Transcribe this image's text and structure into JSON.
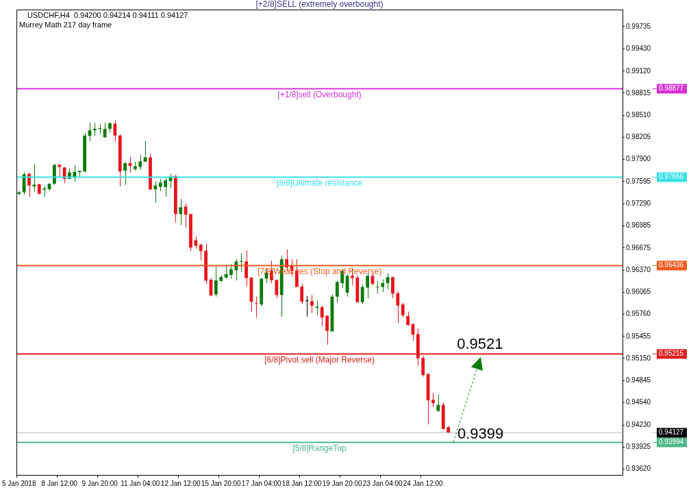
{
  "chart_data": {
    "type": "candlestick",
    "title": "USDCHF,H4  0.94200 0.94214 0.94111 0.94127",
    "subtitle": "Murrey Math 217 day frame",
    "categories": [
      "5 Jan 2018",
      null,
      null,
      null,
      null,
      null,
      null,
      null,
      "8 Jan 12:00",
      null,
      null,
      null,
      null,
      null,
      null,
      null,
      "9 Jan 20:00",
      null,
      null,
      null,
      null,
      null,
      null,
      null,
      "11 Jan 04:00",
      null,
      null,
      null,
      null,
      null,
      null,
      null,
      "12 Jan 12:00",
      null,
      null,
      null,
      null,
      null,
      null,
      null,
      "15 Jan 20:00",
      null,
      null,
      null,
      null,
      null,
      null,
      null,
      "17 Jan 04:00",
      null,
      null,
      null,
      null,
      null,
      null,
      null,
      "18 Jan 12:00",
      null,
      null,
      null,
      null,
      null,
      null,
      null,
      "19 Jan 20:00",
      null,
      null,
      null,
      null,
      null,
      null,
      null,
      "23 Jan 04:00",
      null,
      null,
      null,
      null,
      null,
      null,
      null,
      "24 Jan 12:00",
      null,
      null,
      null,
      null,
      null,
      null,
      null,
      null,
      null,
      null,
      null,
      null,
      null,
      null,
      null,
      null,
      null,
      null,
      null,
      null,
      null,
      null,
      null,
      null,
      null,
      null,
      null,
      null,
      null,
      null,
      null,
      null,
      null,
      null,
      null,
      null,
      null,
      null,
      null
    ],
    "ohlc": [
      [
        0.97424,
        0.97464,
        0.97403,
        0.97446
      ],
      [
        0.97446,
        0.97719,
        0.97415,
        0.97694
      ],
      [
        0.97703,
        0.97712,
        0.97384,
        0.97539
      ],
      [
        0.97527,
        0.97836,
        0.97455,
        0.97551
      ],
      [
        0.97557,
        0.97564,
        0.97418,
        0.97424
      ],
      [
        0.97483,
        0.97533,
        0.97384,
        0.97499
      ],
      [
        0.97489,
        0.9757,
        0.97464,
        0.97564
      ],
      [
        0.97564,
        0.97827,
        0.97548,
        0.97827
      ],
      [
        0.97827,
        0.9783,
        0.97657,
        0.97796
      ],
      [
        0.9779,
        0.9779,
        0.9757,
        0.97632
      ],
      [
        0.97632,
        0.97774,
        0.97626,
        0.97719
      ],
      [
        0.9765,
        0.97818,
        0.97588,
        0.97727
      ],
      [
        0.97725,
        0.97743,
        0.9765,
        0.97743
      ],
      [
        0.97734,
        0.98261,
        0.97719,
        0.9823
      ],
      [
        0.98224,
        0.98406,
        0.98152,
        0.98301
      ],
      [
        0.98301,
        0.98406,
        0.9822,
        0.98323
      ],
      [
        0.9832,
        0.98385,
        0.98251,
        0.98332
      ],
      [
        0.98205,
        0.98406,
        0.98199,
        0.98323
      ],
      [
        0.98323,
        0.98406,
        0.9827,
        0.984
      ],
      [
        0.98394,
        0.98437,
        0.98146,
        0.9823
      ],
      [
        0.9823,
        0.98245,
        0.97526,
        0.97734
      ],
      [
        0.97743,
        0.97858,
        0.97548,
        0.97849
      ],
      [
        0.97849,
        0.97935,
        0.97712,
        0.97811
      ],
      [
        0.97765,
        0.97867,
        0.97743,
        0.97805
      ],
      [
        0.97796,
        0.97966,
        0.97756,
        0.97873
      ],
      [
        0.97867,
        0.98152,
        0.97867,
        0.97929
      ],
      [
        0.97929,
        0.97982,
        0.97477,
        0.97486
      ],
      [
        0.97486,
        0.97595,
        0.973,
        0.97539
      ],
      [
        0.9752,
        0.97632,
        0.97464,
        0.97579
      ],
      [
        0.97517,
        0.97641,
        0.97384,
        0.9761
      ],
      [
        0.97601,
        0.97703,
        0.97502,
        0.97663
      ],
      [
        0.97672,
        0.97681,
        0.97031,
        0.97145
      ],
      [
        0.97145,
        0.97353,
        0.96991,
        0.97238
      ],
      [
        0.97248,
        0.97291,
        0.9696,
        0.97136
      ],
      [
        0.97145,
        0.97145,
        0.96634,
        0.96681
      ],
      [
        0.96783,
        0.96836,
        0.96665,
        0.96706
      ],
      [
        0.96721,
        0.96733,
        0.96504,
        0.96634
      ],
      [
        0.9664,
        0.96733,
        0.96176,
        0.96225
      ],
      [
        0.96238,
        0.96256,
        0.96009,
        0.96021
      ],
      [
        0.96035,
        0.96417,
        0.96004,
        0.96227
      ],
      [
        0.96221,
        0.96298,
        0.96205,
        0.96274
      ],
      [
        0.96267,
        0.96447,
        0.96252,
        0.96314
      ],
      [
        0.96305,
        0.96453,
        0.96252,
        0.96382
      ],
      [
        0.96366,
        0.96521,
        0.96227,
        0.9649
      ],
      [
        0.96484,
        0.96602,
        0.96345,
        0.96493
      ],
      [
        0.9649,
        0.96645,
        0.9615,
        0.96261
      ],
      [
        0.96267,
        0.96267,
        0.95796,
        0.95933
      ],
      [
        0.95905,
        0.96004,
        0.95716,
        0.95902
      ],
      [
        0.95896,
        0.96261,
        0.95871,
        0.96252
      ],
      [
        0.96252,
        0.96391,
        0.9619,
        0.96336
      ],
      [
        0.9636,
        0.965,
        0.9619,
        0.9623
      ],
      [
        0.96236,
        0.96236,
        0.95982,
        0.96026
      ],
      [
        0.96026,
        0.96571,
        0.95725,
        0.96521
      ],
      [
        0.96521,
        0.96655,
        0.9636,
        0.96407
      ],
      [
        0.96428,
        0.96521,
        0.96283,
        0.9636
      ],
      [
        0.96366,
        0.96521,
        0.96137,
        0.96137
      ],
      [
        0.96143,
        0.9618,
        0.95902,
        0.95933
      ],
      [
        0.95942,
        0.96013,
        0.95725,
        0.95942
      ],
      [
        0.95942,
        0.96026,
        0.95778,
        0.9588
      ],
      [
        0.95849,
        0.95951,
        0.95747,
        0.95865
      ],
      [
        0.95859,
        0.9588,
        0.95601,
        0.95716
      ],
      [
        0.95741,
        0.95741,
        0.95338,
        0.9553
      ],
      [
        0.95524,
        0.96035,
        0.95518,
        0.96004
      ],
      [
        0.96004,
        0.96221,
        0.9592,
        0.96205
      ],
      [
        0.9619,
        0.96391,
        0.96119,
        0.9636
      ],
      [
        0.9606,
        0.96314,
        0.96004,
        0.96292
      ],
      [
        0.96292,
        0.96391,
        0.96159,
        0.96261
      ],
      [
        0.96267,
        0.96298,
        0.9592,
        0.95927
      ],
      [
        0.95927,
        0.96174,
        0.95902,
        0.96137
      ],
      [
        0.96128,
        0.96329,
        0.95982,
        0.96292
      ],
      [
        0.96292,
        0.96314,
        0.96159,
        0.9618
      ],
      [
        0.96131,
        0.96221,
        0.96044,
        0.96137
      ],
      [
        0.96137,
        0.96243,
        0.96066,
        0.9619
      ],
      [
        0.9619,
        0.96329,
        0.96106,
        0.96274
      ],
      [
        0.96274,
        0.96274,
        0.95982,
        0.96044
      ],
      [
        0.9605,
        0.96075,
        0.95642,
        0.9588
      ],
      [
        0.95896,
        0.9592,
        0.95716,
        0.95747
      ],
      [
        0.95735,
        0.95797,
        0.95601,
        0.95611
      ],
      [
        0.95623,
        0.95642,
        0.95394,
        0.95478
      ],
      [
        0.95487,
        0.95561,
        0.95053,
        0.95152
      ],
      [
        0.95158,
        0.95183,
        0.94898,
        0.9492
      ],
      [
        0.94935,
        0.94941,
        0.94238,
        0.9457
      ],
      [
        0.94579,
        0.94672,
        0.94477,
        0.94532
      ],
      [
        0.94424,
        0.94651,
        0.94415,
        0.94508
      ],
      [
        0.94508,
        0.94539,
        0.94167,
        0.94176
      ],
      [
        0.942,
        0.94214,
        0.94111,
        0.94127
      ],
      null,
      null,
      null,
      null,
      null,
      null,
      null,
      null,
      null,
      null,
      null,
      null,
      null,
      null,
      null,
      null,
      null,
      null,
      null,
      null,
      null,
      null,
      null,
      null,
      null,
      null,
      null,
      null,
      null,
      null,
      null,
      null,
      null,
      null
    ],
    "colors": [
      "#0b7a0b",
      "#0b7a0b",
      "#e8141b",
      "#0b7a0b",
      "#e8141b",
      "#0b7a0b",
      "#0b7a0b",
      "#0b7a0b",
      "#e8141b",
      "#e8141b",
      "#0b7a0b",
      "#0b7a0b",
      "#0b7a0b",
      "#0b7a0b",
      "#0b7a0b",
      "#0b7a0b",
      "#0b7a0b",
      "#0b7a0b",
      "#0b7a0b",
      "#e8141b",
      "#e8141b",
      "#0b7a0b",
      "#e8141b",
      "#0b7a0b",
      "#0b7a0b",
      "#0b7a0b",
      "#e8141b",
      "#0b7a0b",
      "#0b7a0b",
      "#0b7a0b",
      "#0b7a0b",
      "#e8141b",
      "#0b7a0b",
      "#e8141b",
      "#e8141b",
      "#e8141b",
      "#e8141b",
      "#e8141b",
      "#e8141b",
      "#0b7a0b",
      "#0b7a0b",
      "#0b7a0b",
      "#0b7a0b",
      "#0b7a0b",
      "#0b7a0b",
      "#e8141b",
      "#e8141b",
      "#e8141b",
      "#0b7a0b",
      "#0b7a0b",
      "#e8141b",
      "#e8141b",
      "#0b7a0b",
      "#e8141b",
      "#e8141b",
      "#e8141b",
      "#e8141b",
      "#000000",
      "#e8141b",
      "#0b7a0b",
      "#e8141b",
      "#e8141b",
      "#0b7a0b",
      "#0b7a0b",
      "#0b7a0b",
      "#0b7a0b",
      "#e8141b",
      "#e8141b",
      "#0b7a0b",
      "#0b7a0b",
      "#e8141b",
      "#0b7a0b",
      "#0b7a0b",
      "#0b7a0b",
      "#e8141b",
      "#e8141b",
      "#e8141b",
      "#e8141b",
      "#e8141b",
      "#e8141b",
      "#e8141b",
      "#e8141b",
      "#e8141b",
      "#0b7a0b",
      "#e8141b",
      "#e8141b",
      null,
      null,
      null,
      null,
      null,
      null,
      null,
      null,
      null,
      null,
      null,
      null,
      null,
      null,
      null,
      null,
      null,
      null,
      null,
      null,
      null,
      null,
      null,
      null,
      null,
      null,
      null,
      null,
      null,
      null,
      null,
      null,
      null,
      null
    ],
    "ylim": [
      0.9354,
      0.9997
    ],
    "yticks": [
      0.99735,
      {
        "value": 0.9943,
        "label": "0.99430"
      },
      {
        "value": 0.9912,
        "label": "0.99120"
      },
      0.98815,
      {
        "value": 0.9851,
        "label": "0.98510"
      },
      0.98205,
      {
        "value": 0.979,
        "label": "0.97900"
      },
      0.97595,
      {
        "value": 0.9729,
        "label": "0.97290"
      },
      0.96985,
      0.96675,
      {
        "value": 0.9637,
        "label": "0.96370"
      },
      0.96065,
      {
        "value": 0.9576,
        "label": "0.95760"
      },
      0.95455,
      {
        "value": 0.9515,
        "label": "0.95150"
      },
      0.94845,
      {
        "value": 0.9454,
        "label": "0.94540"
      },
      {
        "value": 0.9423,
        "label": "0.94230"
      },
      0.93925,
      {
        "value": 0.9362,
        "label": "0.93620"
      }
    ],
    "ref_lines": [
      {
        "axis": "y",
        "value": 0.98877,
        "label": "[+1/8]sell (Overbought)",
        "color": "#d633d6"
      },
      {
        "axis": "y",
        "value": 0.97656,
        "label": "[8/8]Ultimate resistance",
        "color": "#38e0e8"
      },
      {
        "axis": "y",
        "value": 0.96436,
        "label": "[7/8]Weak res (Stop and Reverse)",
        "color": "#f05a1e"
      },
      {
        "axis": "y",
        "value": 0.95215,
        "label": "[6/8]Pivot sell (Major Reverse)",
        "color": "#e01e1e"
      },
      {
        "axis": "y",
        "value": 0.93994,
        "label": "[5/8]RangeTop",
        "color": "#4db889"
      },
      {
        "axis": "y",
        "value": 0.94127,
        "label": null,
        "color": "#c0c0c0"
      }
    ],
    "annotations": [
      {
        "text": "0.9521",
        "y": 0.9521
      },
      {
        "text": "0.9399",
        "y": 0.9399
      },
      "[+2/8]SELL (extremely overbought)",
      "0.98877",
      "0.97656",
      "0.96436",
      "0.95215",
      "0.93994",
      "0.94127"
    ]
  }
}
